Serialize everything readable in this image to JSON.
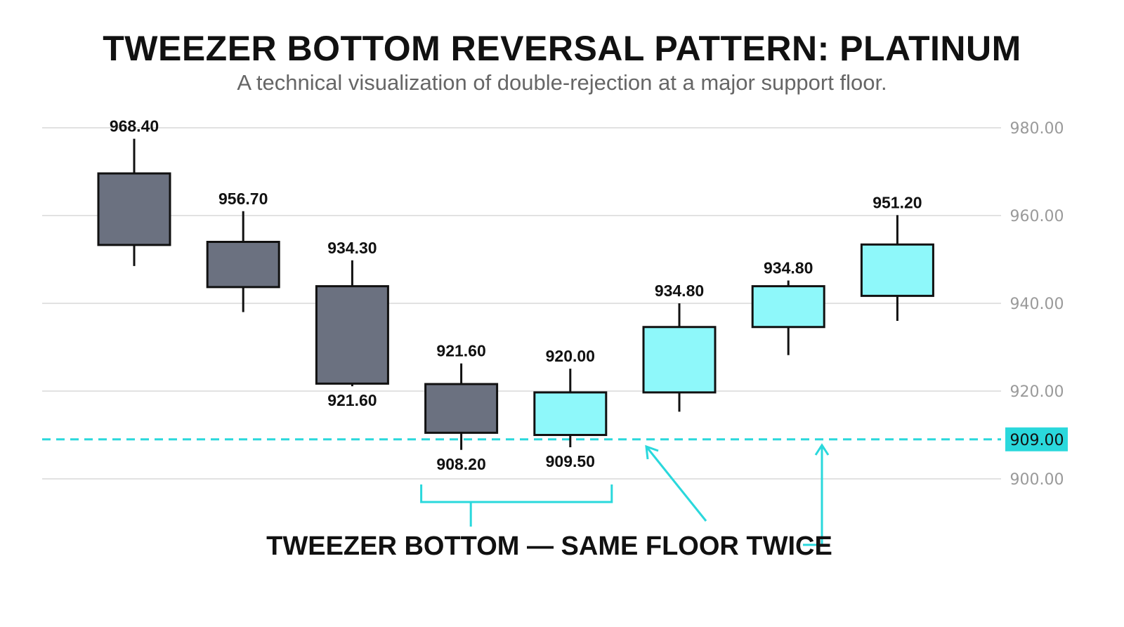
{
  "chart_data": {
    "type": "candlestick",
    "title": "TWEEZER BOTTOM REVERSAL PATTERN: PLATINUM",
    "subtitle": "A technical visualization of double-rejection at a major support floor.",
    "ylim": [
      895,
      985
    ],
    "y_ticks": [
      {
        "value": 980,
        "label": "980.00"
      },
      {
        "value": 960,
        "label": "960.00"
      },
      {
        "value": 940,
        "label": "940.00"
      },
      {
        "value": 920,
        "label": "920.00"
      },
      {
        "value": 900,
        "label": "900.00"
      }
    ],
    "grid": true,
    "support": {
      "value": 909,
      "label": "909.00",
      "color": "#2ad8dc"
    },
    "colors": {
      "bearish": "#6b7180",
      "bullish": "#8ef8fa",
      "outline": "#111111",
      "accent": "#2ad8dc"
    },
    "candles": [
      {
        "open": 969.6,
        "close": 953.3,
        "high": 977.5,
        "low": 948.5,
        "direction": "bearish",
        "labels": [
          {
            "text": "968.40",
            "anchor": "high"
          }
        ]
      },
      {
        "open": 954.0,
        "close": 943.7,
        "high": 961.0,
        "low": 938.0,
        "direction": "bearish",
        "labels": [
          {
            "text": "956.70",
            "anchor": "high"
          }
        ]
      },
      {
        "open": 943.9,
        "close": 921.7,
        "high": 949.8,
        "low": 921.1,
        "direction": "bearish",
        "labels": [
          {
            "text": "934.30",
            "anchor": "high"
          },
          {
            "text": "921.60",
            "anchor": "low"
          }
        ]
      },
      {
        "open": 921.6,
        "close": 910.5,
        "high": 926.3,
        "low": 906.6,
        "direction": "bearish",
        "labels": [
          {
            "text": "921.60",
            "anchor": "high"
          },
          {
            "text": "908.20",
            "anchor": "low"
          }
        ]
      },
      {
        "open": 910.0,
        "close": 919.7,
        "high": 925.1,
        "low": 907.2,
        "direction": "bullish",
        "labels": [
          {
            "text": "920.00",
            "anchor": "high"
          },
          {
            "text": "909.50",
            "anchor": "low"
          }
        ]
      },
      {
        "open": 919.7,
        "close": 934.6,
        "high": 940.0,
        "low": 915.3,
        "direction": "bullish",
        "labels": [
          {
            "text": "934.80",
            "anchor": "high"
          }
        ]
      },
      {
        "open": 934.6,
        "close": 943.9,
        "high": 945.2,
        "low": 928.2,
        "direction": "bullish",
        "labels": [
          {
            "text": "934.80",
            "anchor": "high"
          }
        ]
      },
      {
        "open": 941.7,
        "close": 953.4,
        "high": 960.1,
        "low": 936.0,
        "direction": "bullish",
        "labels": [
          {
            "text": "951.20",
            "anchor": "high"
          }
        ]
      }
    ],
    "annotation": {
      "text": "TWEEZER BOTTOM — SAME FLOOR TWICE",
      "bracket_candles": [
        3,
        4
      ]
    }
  }
}
